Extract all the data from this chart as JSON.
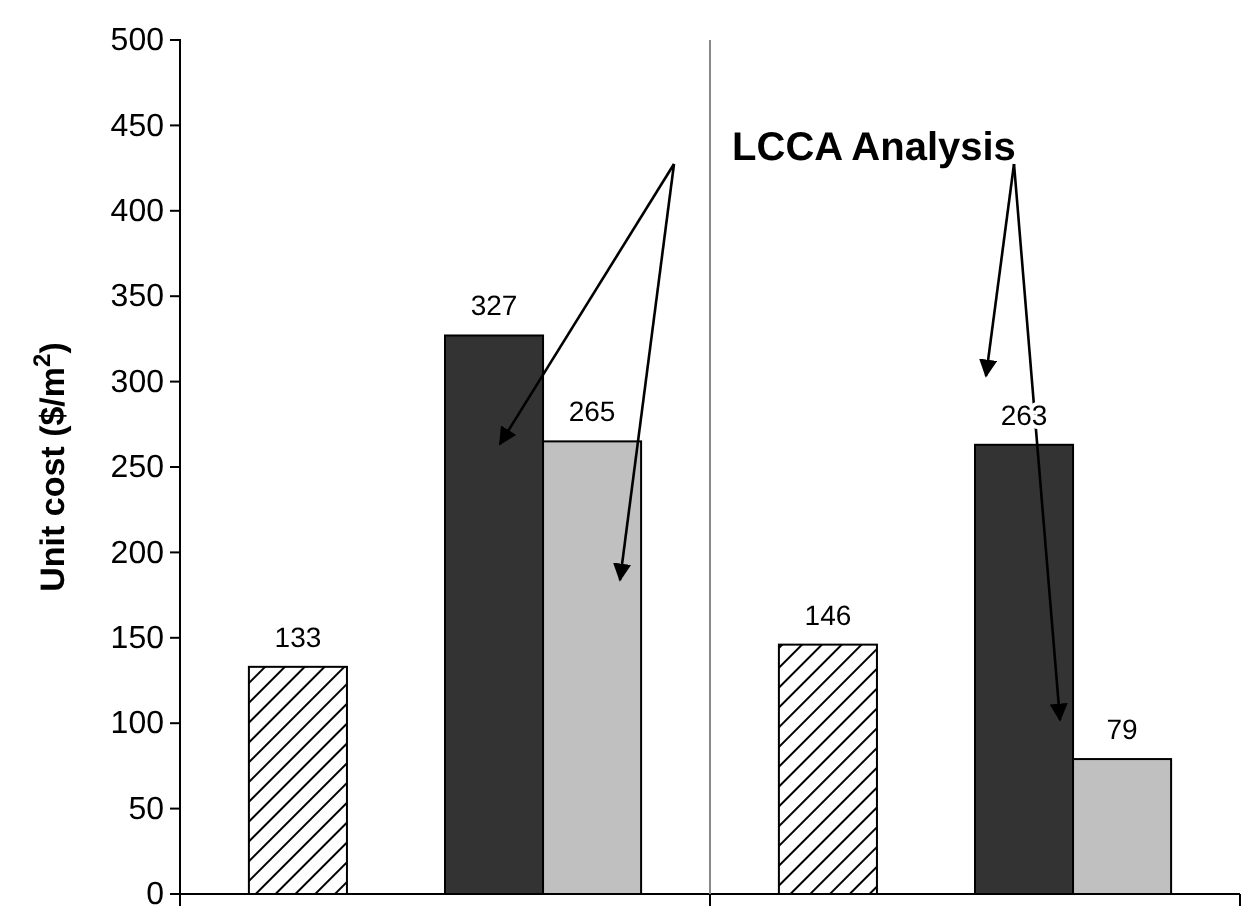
{
  "chart_data": {
    "type": "bar",
    "ylabel": "Unit cost ($/m$^{2}$)",
    "categories": [
      null,
      null
    ],
    "series": [
      {
        "color": "#000000",
        "values": [
          133,
          146
        ]
      },
      {
        "color": "#333333",
        "values": [
          327,
          263
        ]
      },
      {
        "color": "#c0c0c0",
        "values": [
          265,
          79
        ]
      }
    ],
    "ylim": [
      0,
      500
    ],
    "yticks": [
      0,
      50,
      100,
      150,
      200,
      250,
      300,
      350,
      400,
      450,
      500
    ],
    "data_labels": true,
    "annotations": [
      "LCCA Analysis"
    ]
  }
}
